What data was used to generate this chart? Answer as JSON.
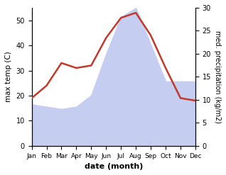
{
  "months": [
    "Jan",
    "Feb",
    "Mar",
    "Apr",
    "May",
    "Jun",
    "Jul",
    "Aug",
    "Sep",
    "Oct",
    "Nov",
    "Dec"
  ],
  "temp": [
    19,
    24,
    33,
    31,
    32,
    43,
    51,
    53,
    44,
    31,
    19,
    18
  ],
  "precip": [
    9,
    8.5,
    8,
    8.5,
    11,
    20,
    28,
    30,
    22,
    14,
    14,
    14
  ],
  "temp_color": "#c0392b",
  "precip_fill_color": "#c5cef0",
  "ylim_temp": [
    0,
    55
  ],
  "ylim_precip": [
    0,
    30
  ],
  "yticks_temp": [
    0,
    10,
    20,
    30,
    40,
    50
  ],
  "yticks_precip": [
    0,
    5,
    10,
    15,
    20,
    25,
    30
  ],
  "xlabel": "date (month)",
  "ylabel_left": "max temp (C)",
  "ylabel_right": "med. precipitation (kg/m2)"
}
